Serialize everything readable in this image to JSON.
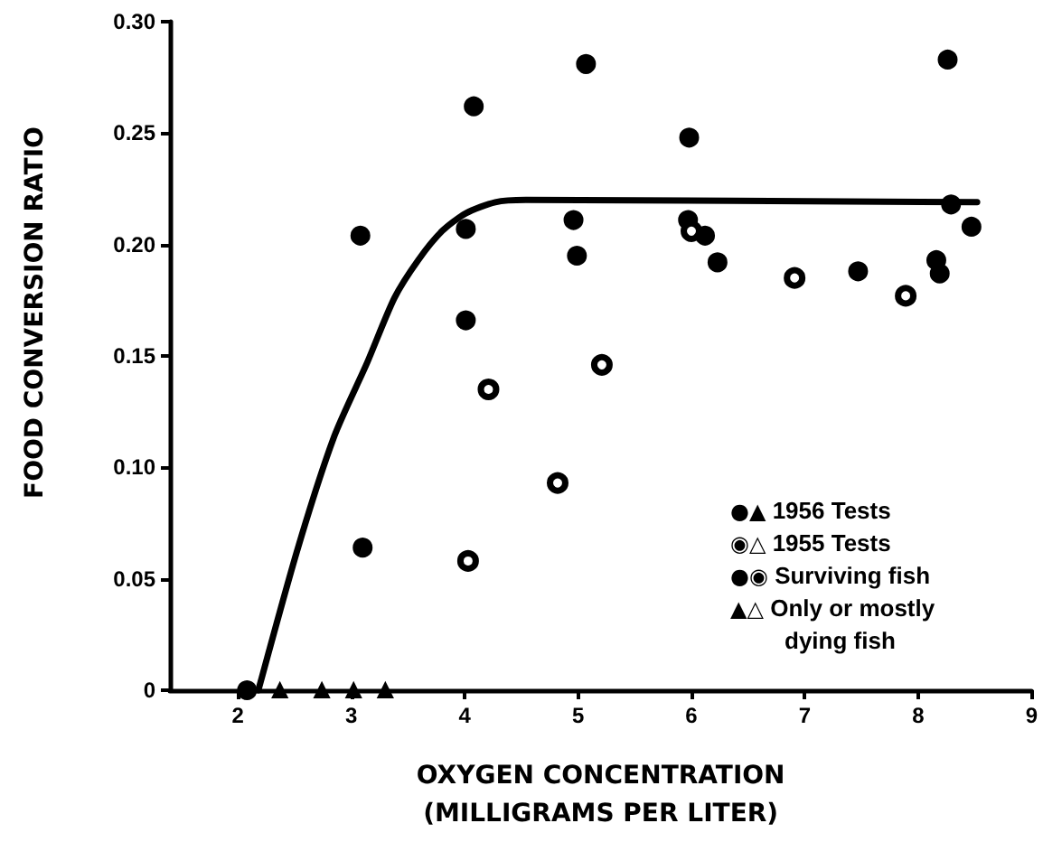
{
  "chart_data": {
    "type": "scatter",
    "xlabel": "OXYGEN CONCENTRATION\n(MILLIGRAMS PER LITER)",
    "ylabel": "FOOD CONVERSION RATIO",
    "xlim": [
      1.4,
      9
    ],
    "xticks": [
      2,
      3,
      4,
      5,
      6,
      7,
      8,
      9
    ],
    "ylim": [
      0,
      0.3
    ],
    "yticks": [
      0,
      0.05,
      {
        "value": 0.1,
        "label": "0.10"
      },
      0.15,
      {
        "value": 0.2,
        "label": "0.20"
      },
      0.25,
      {
        "value": 0.3,
        "label": "0.30"
      }
    ],
    "annotations": [
      "●▲ 1956 Tests",
      "◉△ 1955 Tests",
      "●◉ Surviving fish",
      "▲△ Only or mostly dying fish"
    ],
    "series": [
      {
        "color": "#000000",
        "marker": "circle",
        "x": [
          2.08,
          3.08,
          3.1,
          4.01,
          4.01,
          4.08,
          4.96,
          4.99,
          5.07,
          5.97,
          5.98,
          6.12,
          6.23,
          7.47,
          8.16,
          8.19,
          8.26,
          8.29,
          8.47
        ],
        "values": [
          0,
          0.204,
          0.064,
          0.207,
          0.166,
          0.262,
          0.211,
          0.195,
          0.281,
          0.211,
          0.248,
          0.204,
          0.192,
          0.188,
          0.193,
          0.187,
          0.283,
          0.218,
          0.208
        ]
      },
      {
        "color": "#ffffff",
        "marker": "circle",
        "x": [
          4.03,
          4.21,
          4.82,
          5.21,
          6.0,
          6.91,
          7.89
        ],
        "values": [
          0.058,
          0.135,
          0.093,
          0.146,
          0.206,
          0.185,
          0.177
        ]
      },
      {
        "color": "#000000",
        "marker": "triangle",
        "x": [
          2.37,
          2.74,
          3.02,
          3.3
        ],
        "values": [
          0,
          0,
          0,
          0
        ]
      },
      {
        "type": "line",
        "color": "#000000",
        "marker": "none",
        "x": [
          2.18,
          2.53,
          2.85,
          3.14,
          3.38,
          3.59,
          3.8,
          4.01,
          4.27,
          4.54,
          8.52
        ],
        "values": [
          0,
          0.064,
          0.114,
          0.147,
          0.176,
          0.193,
          0.206,
          0.214,
          0.219,
          0.22,
          0.219
        ]
      }
    ]
  }
}
